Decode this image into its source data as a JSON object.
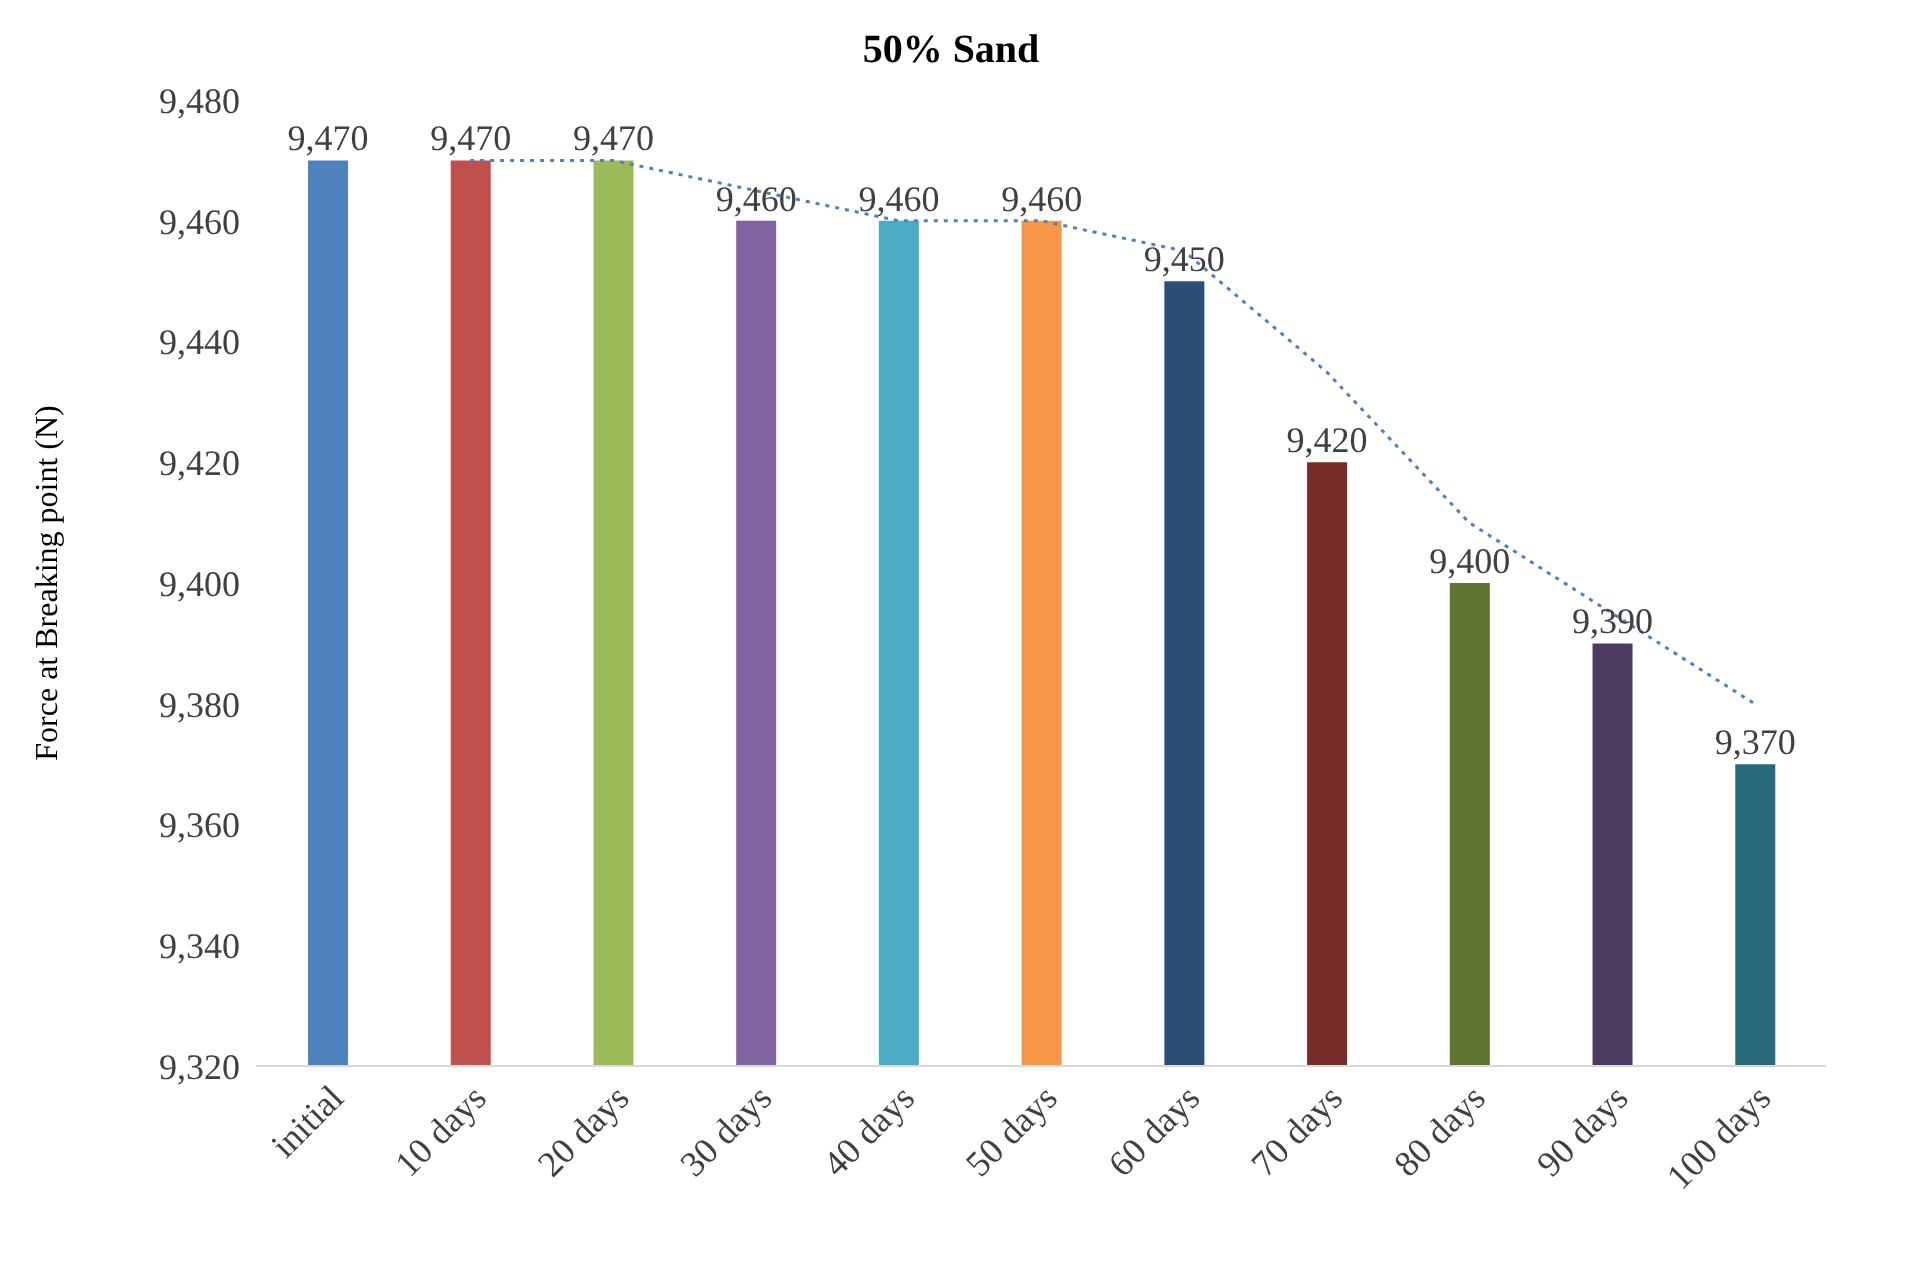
{
  "chart_data": {
    "type": "bar",
    "title": "50% Sand",
    "ylabel": "Force at Breaking point (N)",
    "categories": [
      "initial",
      "10 days",
      "20 days",
      "30 days",
      "40 days",
      "50 days",
      "60 days",
      "70 days",
      "80 days",
      "90 days",
      "100 days"
    ],
    "ylim": [
      9320,
      9480
    ],
    "yticks": [
      {
        "value": 9320,
        "label": "9,320"
      },
      {
        "value": 9340,
        "label": "9,340"
      },
      {
        "value": 9360,
        "label": "9,360"
      },
      {
        "value": 9380,
        "label": "9,380"
      },
      {
        "value": 9400,
        "label": "9,400"
      },
      {
        "value": 9420,
        "label": "9,420"
      },
      {
        "value": 9440,
        "label": "9,440"
      },
      {
        "value": 9460,
        "label": "9,460"
      },
      {
        "value": 9480,
        "label": "9,480"
      }
    ],
    "grid": false,
    "legend": false,
    "series": [
      {
        "values": [
          9470,
          9470,
          9470,
          9460,
          9460,
          9460,
          9450,
          9420,
          9400,
          9390,
          9370
        ],
        "colors": [
          "#4f81bd",
          "#c0504d",
          "#9bbb59",
          "#8064a2",
          "#4bacc6",
          "#f79646",
          "#2c4d75",
          "#772c2a",
          "#5f7530",
          "#4d3b62",
          "#276a7c"
        ],
        "value_labels": [
          "9,470",
          "9,470",
          "9,470",
          "9,460",
          "9,460",
          "9,460",
          "9,450",
          "9,420",
          "9,400",
          "9,390",
          "9,370"
        ]
      },
      {
        "type": "line",
        "color": "#4f81bd",
        "line_style": "dotted",
        "marker": "none",
        "values": [
          null,
          9470,
          9470,
          9465,
          9460,
          9460,
          9455,
          9435,
          9410,
          9395,
          9380
        ]
      }
    ]
  }
}
